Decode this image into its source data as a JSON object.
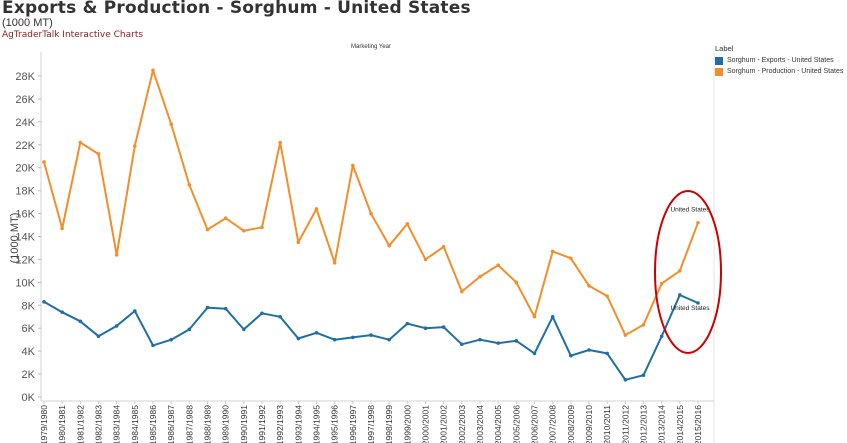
{
  "header": {
    "title": "Exports & Production - Sorghum - United States",
    "subtitle": "(1000 MT)",
    "brand": "AgTraderTalk Interactive Charts"
  },
  "legend": {
    "title": "Label",
    "items": [
      {
        "label": "Sorghum - Exports - United States",
        "color": "#1f6fa6"
      },
      {
        "label": "Sorghum - Production - United States",
        "color": "#f28e2b"
      }
    ]
  },
  "chart_data": {
    "type": "line",
    "title": "Marketing Year",
    "xlabel": "",
    "ylabel": "(1000 MT)",
    "ylim": [
      0,
      28000
    ],
    "yticks": [
      0,
      2000,
      4000,
      6000,
      8000,
      10000,
      12000,
      14000,
      16000,
      18000,
      20000,
      22000,
      24000,
      26000,
      28000
    ],
    "ytick_labels": [
      "0K",
      "2K",
      "4K",
      "6K",
      "8K",
      "10K",
      "12K",
      "14K",
      "16K",
      "18K",
      "20K",
      "22K",
      "24K",
      "26K",
      "28K"
    ],
    "grid": false,
    "categories": [
      "1979/1980",
      "1980/1981",
      "1981/1982",
      "1982/1983",
      "1983/1984",
      "1984/1985",
      "1985/1986",
      "1986/1987",
      "1987/1988",
      "1988/1989",
      "1989/1990",
      "1990/1991",
      "1991/1992",
      "1992/1993",
      "1993/1994",
      "1994/1995",
      "1995/1996",
      "1996/1997",
      "1997/1998",
      "1998/1999",
      "1999/2000",
      "2000/2001",
      "2001/2002",
      "2002/2003",
      "2003/2004",
      "2004/2005",
      "2005/2006",
      "2006/2007",
      "2007/2008",
      "2008/2009",
      "2009/2010",
      "2010/2011",
      "2011/2012",
      "2012/2013",
      "2013/2014",
      "2014/2015",
      "2015/2016"
    ],
    "series": [
      {
        "name": "Sorghum - Exports - United States",
        "color": "#1f6fa6",
        "values": [
          8300,
          7400,
          6600,
          5300,
          6200,
          7500,
          4500,
          5000,
          5900,
          7800,
          7700,
          5900,
          7300,
          7000,
          5100,
          5600,
          5000,
          5200,
          5400,
          5000,
          6400,
          6000,
          6100,
          4600,
          5000,
          4700,
          4900,
          3800,
          7000,
          3600,
          4100,
          3800,
          1500,
          1900,
          5300,
          8900,
          8200
        ],
        "end_label": "United States"
      },
      {
        "name": "Sorghum - Production - United States",
        "color": "#f28e2b",
        "values": [
          20500,
          14700,
          22200,
          21200,
          12400,
          21900,
          28500,
          23800,
          18500,
          14600,
          15600,
          14500,
          14800,
          22200,
          13500,
          16400,
          11700,
          20200,
          16000,
          13200,
          15100,
          12000,
          13100,
          9200,
          10500,
          11500,
          10000,
          7000,
          12700,
          12100,
          9700,
          8800,
          5400,
          6300,
          9900,
          11000,
          15200
        ],
        "end_label": "United States"
      }
    ]
  },
  "annotation": {
    "shape": "ellipse",
    "color": "#cc0000"
  }
}
